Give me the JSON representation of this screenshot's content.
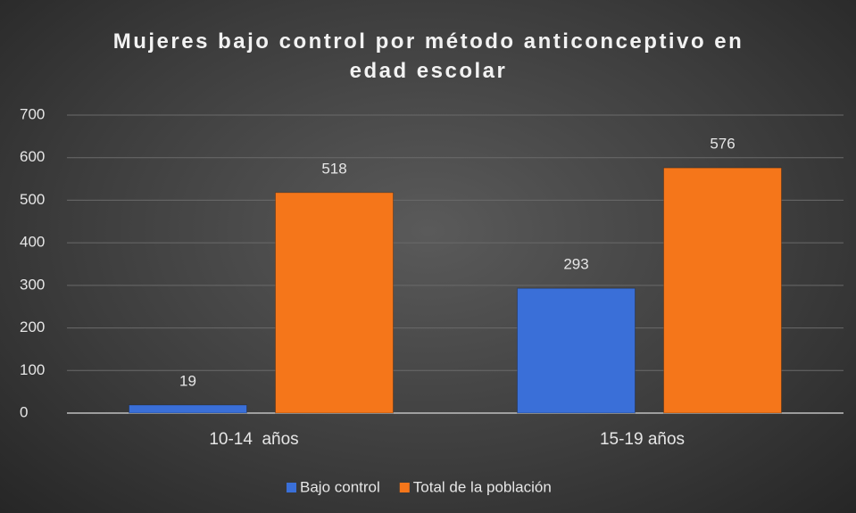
{
  "chart_data": {
    "type": "bar",
    "title": "Mujeres bajo control por método anticonceptivo en edad escolar",
    "categories": [
      "10-14  años",
      "15-19 años"
    ],
    "series": [
      {
        "name": "Bajo control",
        "color": "#3a6fd8",
        "values": [
          19,
          293
        ]
      },
      {
        "name": "Total de la población",
        "color": "#f5761a",
        "values": [
          518,
          576
        ]
      }
    ],
    "ylim": [
      0,
      700
    ],
    "yticks": [
      0,
      100,
      200,
      300,
      400,
      500,
      600,
      700
    ],
    "grid": true,
    "legend": "bottom"
  }
}
